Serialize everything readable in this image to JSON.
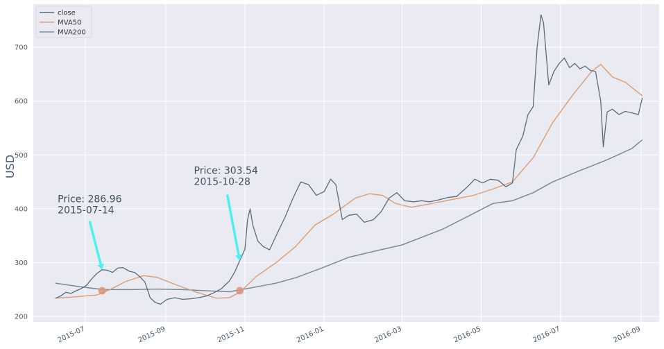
{
  "chart_data": {
    "type": "line",
    "ylabel": "USD",
    "ylim": [
      190,
      780
    ],
    "xlim": [
      "2015-05-22",
      "2016-09-15"
    ],
    "grid": true,
    "legend_position": "top-left",
    "colors": {
      "background": "#eaeaf2",
      "close": "#5b6a78",
      "mva50": "#d9a27e",
      "mva200": "#7a8a99",
      "arrow": "#4ff0f0",
      "marker": "#d8957a"
    },
    "y_ticks": [
      {
        "value": 200,
        "label": "200"
      },
      {
        "value": 300,
        "label": "300"
      },
      {
        "value": 400,
        "label": "400"
      },
      {
        "value": 500,
        "label": "500"
      },
      {
        "value": 600,
        "label": "600"
      },
      {
        "value": 700,
        "label": "700"
      }
    ],
    "x_ticks": [
      {
        "value": "2015-07-01",
        "label": "2015-07"
      },
      {
        "value": "2015-09-01",
        "label": "2015-09"
      },
      {
        "value": "2015-11-01",
        "label": "2015-11"
      },
      {
        "value": "2016-01-01",
        "label": "2016-01"
      },
      {
        "value": "2016-03-01",
        "label": "2016-03"
      },
      {
        "value": "2016-05-01",
        "label": "2016-05"
      },
      {
        "value": "2016-07-01",
        "label": "2016-07"
      },
      {
        "value": "2016-09-01",
        "label": "2016-09"
      }
    ],
    "series": [
      {
        "name": "close",
        "points": [
          [
            "2015-06-08",
            234
          ],
          [
            "2015-06-12",
            238
          ],
          [
            "2015-06-16",
            245
          ],
          [
            "2015-06-20",
            243
          ],
          [
            "2015-06-24",
            248
          ],
          [
            "2015-06-28",
            252
          ],
          [
            "2015-07-02",
            258
          ],
          [
            "2015-07-06",
            270
          ],
          [
            "2015-07-10",
            280
          ],
          [
            "2015-07-14",
            287
          ],
          [
            "2015-07-18",
            286
          ],
          [
            "2015-07-22",
            282
          ],
          [
            "2015-07-26",
            290
          ],
          [
            "2015-07-30",
            291
          ],
          [
            "2015-08-04",
            284
          ],
          [
            "2015-08-08",
            282
          ],
          [
            "2015-08-12",
            274
          ],
          [
            "2015-08-16",
            264
          ],
          [
            "2015-08-20",
            235
          ],
          [
            "2015-08-24",
            226
          ],
          [
            "2015-08-28",
            223
          ],
          [
            "2015-09-02",
            232
          ],
          [
            "2015-09-08",
            235
          ],
          [
            "2015-09-14",
            232
          ],
          [
            "2015-09-20",
            233
          ],
          [
            "2015-09-26",
            235
          ],
          [
            "2015-10-02",
            238
          ],
          [
            "2015-10-08",
            244
          ],
          [
            "2015-10-14",
            252
          ],
          [
            "2015-10-20",
            266
          ],
          [
            "2015-10-24",
            282
          ],
          [
            "2015-10-28",
            304
          ],
          [
            "2015-11-01",
            325
          ],
          [
            "2015-11-03",
            380
          ],
          [
            "2015-11-05",
            400
          ],
          [
            "2015-11-07",
            370
          ],
          [
            "2015-11-11",
            340
          ],
          [
            "2015-11-15",
            330
          ],
          [
            "2015-11-20",
            324
          ],
          [
            "2015-11-26",
            355
          ],
          [
            "2015-12-02",
            385
          ],
          [
            "2015-12-08",
            420
          ],
          [
            "2015-12-14",
            450
          ],
          [
            "2015-12-20",
            445
          ],
          [
            "2015-12-26",
            425
          ],
          [
            "2016-01-01",
            432
          ],
          [
            "2016-01-06",
            455
          ],
          [
            "2016-01-10",
            445
          ],
          [
            "2016-01-15",
            380
          ],
          [
            "2016-01-20",
            388
          ],
          [
            "2016-01-26",
            390
          ],
          [
            "2016-02-01",
            375
          ],
          [
            "2016-02-08",
            380
          ],
          [
            "2016-02-14",
            395
          ],
          [
            "2016-02-20",
            420
          ],
          [
            "2016-02-26",
            430
          ],
          [
            "2016-03-03",
            415
          ],
          [
            "2016-03-10",
            413
          ],
          [
            "2016-03-16",
            415
          ],
          [
            "2016-03-22",
            413
          ],
          [
            "2016-03-28",
            416
          ],
          [
            "2016-04-05",
            421
          ],
          [
            "2016-04-12",
            423
          ],
          [
            "2016-04-20",
            440
          ],
          [
            "2016-04-26",
            455
          ],
          [
            "2016-05-02",
            448
          ],
          [
            "2016-05-08",
            455
          ],
          [
            "2016-05-14",
            453
          ],
          [
            "2016-05-20",
            441
          ],
          [
            "2016-05-25",
            448
          ],
          [
            "2016-05-28",
            510
          ],
          [
            "2016-06-02",
            535
          ],
          [
            "2016-06-06",
            575
          ],
          [
            "2016-06-10",
            590
          ],
          [
            "2016-06-13",
            700
          ],
          [
            "2016-06-16",
            760
          ],
          [
            "2016-06-18",
            745
          ],
          [
            "2016-06-22",
            630
          ],
          [
            "2016-06-26",
            655
          ],
          [
            "2016-06-30",
            670
          ],
          [
            "2016-07-04",
            680
          ],
          [
            "2016-07-08",
            662
          ],
          [
            "2016-07-12",
            670
          ],
          [
            "2016-07-16",
            660
          ],
          [
            "2016-07-20",
            665
          ],
          [
            "2016-07-24",
            657
          ],
          [
            "2016-07-28",
            655
          ],
          [
            "2016-08-01",
            600
          ],
          [
            "2016-08-03",
            515
          ],
          [
            "2016-08-06",
            580
          ],
          [
            "2016-08-10",
            585
          ],
          [
            "2016-08-15",
            575
          ],
          [
            "2016-08-20",
            581
          ],
          [
            "2016-08-25",
            578
          ],
          [
            "2016-08-30",
            575
          ],
          [
            "2016-09-02",
            606
          ]
        ]
      },
      {
        "name": "MVA50",
        "points": [
          [
            "2015-06-08",
            234
          ],
          [
            "2015-06-25",
            237
          ],
          [
            "2015-07-10",
            240
          ],
          [
            "2015-07-20",
            250
          ],
          [
            "2015-08-01",
            265
          ],
          [
            "2015-08-15",
            276
          ],
          [
            "2015-08-25",
            273
          ],
          [
            "2015-09-10",
            258
          ],
          [
            "2015-09-25",
            245
          ],
          [
            "2015-10-10",
            234
          ],
          [
            "2015-10-20",
            235
          ],
          [
            "2015-10-28",
            245
          ],
          [
            "2015-11-10",
            275
          ],
          [
            "2015-11-25",
            300
          ],
          [
            "2015-12-10",
            330
          ],
          [
            "2015-12-25",
            370
          ],
          [
            "2016-01-08",
            390
          ],
          [
            "2016-01-25",
            420
          ],
          [
            "2016-02-05",
            428
          ],
          [
            "2016-02-15",
            425
          ],
          [
            "2016-02-25",
            410
          ],
          [
            "2016-03-08",
            403
          ],
          [
            "2016-03-20",
            408
          ],
          [
            "2016-04-10",
            418
          ],
          [
            "2016-04-25",
            425
          ],
          [
            "2016-05-10",
            437
          ],
          [
            "2016-05-25",
            450
          ],
          [
            "2016-06-10",
            495
          ],
          [
            "2016-06-25",
            560
          ],
          [
            "2016-07-10",
            610
          ],
          [
            "2016-07-25",
            655
          ],
          [
            "2016-08-01",
            668
          ],
          [
            "2016-08-10",
            645
          ],
          [
            "2016-08-20",
            635
          ],
          [
            "2016-09-02",
            610
          ]
        ]
      },
      {
        "name": "MVA200",
        "points": [
          [
            "2015-06-08",
            262
          ],
          [
            "2015-06-25",
            256
          ],
          [
            "2015-07-15",
            250
          ],
          [
            "2015-08-05",
            250
          ],
          [
            "2015-08-25",
            251
          ],
          [
            "2015-09-15",
            250
          ],
          [
            "2015-10-01",
            248
          ],
          [
            "2015-10-20",
            246
          ],
          [
            "2015-11-05",
            253
          ],
          [
            "2015-11-25",
            262
          ],
          [
            "2015-12-10",
            272
          ],
          [
            "2015-12-30",
            290
          ],
          [
            "2016-01-20",
            310
          ],
          [
            "2016-02-10",
            322
          ],
          [
            "2016-03-01",
            333
          ],
          [
            "2016-04-01",
            362
          ],
          [
            "2016-04-20",
            385
          ],
          [
            "2016-05-10",
            410
          ],
          [
            "2016-05-25",
            415
          ],
          [
            "2016-06-10",
            430
          ],
          [
            "2016-06-25",
            450
          ],
          [
            "2016-07-15",
            470
          ],
          [
            "2016-08-05",
            490
          ],
          [
            "2016-08-25",
            512
          ],
          [
            "2016-09-02",
            528
          ]
        ]
      }
    ],
    "legend": [
      {
        "series": "close",
        "label": "close"
      },
      {
        "series": "MVA50",
        "label": "MVA50"
      },
      {
        "series": "MVA200",
        "label": "MVA200"
      }
    ],
    "crossovers": [
      {
        "date": "2015-07-14",
        "value": 248
      },
      {
        "date": "2015-10-28",
        "value": 248
      }
    ],
    "annotations": [
      {
        "line1": "Price: 286.96",
        "line2": "2015-07-14",
        "date": "2015-07-14",
        "value": 287
      },
      {
        "line1": "Price: 303.54",
        "line2": "2015-10-28",
        "date": "2015-10-28",
        "value": 304
      }
    ]
  }
}
